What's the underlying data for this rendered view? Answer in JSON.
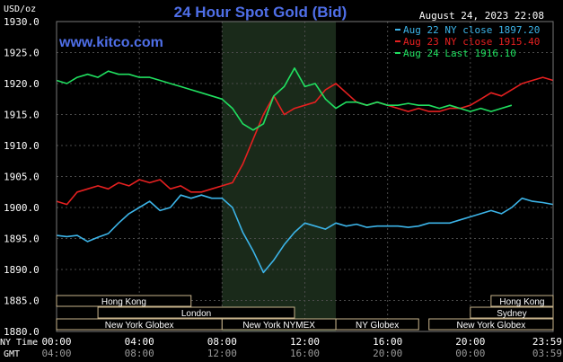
{
  "header": {
    "title": "24 Hour Spot Gold (Bid)",
    "website": "www.kitco.com",
    "timestamp": "August 24, 2023 22:08",
    "unit": "USD/oz"
  },
  "colors": {
    "background": "#000000",
    "title": "#4f6fe8",
    "website": "#4f6fe8",
    "aug22": "#3cb4e8",
    "aug23": "#e62020",
    "aug24": "#20e060",
    "text": "#ffffff",
    "grid": "#4a4a4a",
    "nymex_band": "#1a2a1a",
    "session_border": "#c8b48c"
  },
  "chart_data": {
    "type": "line",
    "ylim": [
      1880,
      1930
    ],
    "yticks": [
      "1930.0",
      "1925.0",
      "1920.0",
      "1915.0",
      "1910.0",
      "1905.0",
      "1900.0",
      "1895.0",
      "1890.0",
      "1885.0",
      "1880.0"
    ],
    "xlim": [
      0,
      24
    ],
    "ny_time_label": "NY Time",
    "gmt_label": "GMT",
    "ny_ticks": [
      "00:00",
      "04:00",
      "08:00",
      "12:00",
      "16:00",
      "20:00",
      "23:59"
    ],
    "gmt_ticks": [
      "04:00",
      "08:00",
      "12:00",
      "16:00",
      "20:00",
      "00:00",
      "03:59"
    ],
    "x_hours": [
      0,
      4,
      8,
      12,
      16,
      20,
      24
    ],
    "legend_position": "top-right",
    "series": [
      {
        "name": "Aug 22 NY close 1897.20",
        "color": "#3cb4e8",
        "x": [
          0,
          0.5,
          1,
          1.5,
          2,
          2.5,
          3,
          3.5,
          4,
          4.5,
          5,
          5.5,
          6,
          6.5,
          7,
          7.5,
          8,
          8.5,
          9,
          9.5,
          10,
          10.5,
          11,
          11.5,
          12,
          12.5,
          13,
          13.5,
          14,
          14.5,
          15,
          15.5,
          16,
          16.5,
          17,
          17.5,
          18,
          18.5,
          19,
          19.5,
          20,
          20.5,
          21,
          21.5,
          22,
          22.5,
          23,
          23.5,
          24
        ],
        "y": [
          1895.5,
          1895.3,
          1895.5,
          1894.5,
          1895.2,
          1895.8,
          1897.5,
          1899.0,
          1900.0,
          1901.0,
          1899.5,
          1900.0,
          1902.0,
          1901.5,
          1902.0,
          1901.5,
          1901.5,
          1900.0,
          1896.0,
          1893.0,
          1889.5,
          1891.5,
          1894.0,
          1896.0,
          1897.5,
          1897.0,
          1896.5,
          1897.5,
          1897.0,
          1897.3,
          1896.8,
          1897.0,
          1897.0,
          1897.0,
          1896.8,
          1897.0,
          1897.5,
          1897.5,
          1897.5,
          1898.0,
          1898.5,
          1899.0,
          1899.5,
          1899.0,
          1900.0,
          1901.5,
          1901.0,
          1900.8,
          1900.5
        ]
      },
      {
        "name": "Aug 23 NY close 1915.40",
        "color": "#e62020",
        "x": [
          0,
          0.5,
          1,
          1.5,
          2,
          2.5,
          3,
          3.5,
          4,
          4.5,
          5,
          5.5,
          6,
          6.5,
          7,
          7.5,
          8,
          8.5,
          9,
          9.5,
          10,
          10.5,
          11,
          11.5,
          12,
          12.5,
          13,
          13.5,
          14,
          14.5,
          15,
          15.5,
          16,
          16.5,
          17,
          17.5,
          18,
          18.5,
          19,
          19.5,
          20,
          20.5,
          21,
          21.5,
          22,
          22.5,
          23,
          23.5,
          24
        ],
        "y": [
          1901.0,
          1900.5,
          1902.5,
          1903.0,
          1903.5,
          1903.0,
          1904.0,
          1903.5,
          1904.5,
          1904.0,
          1904.5,
          1903.0,
          1903.5,
          1902.5,
          1902.5,
          1903.0,
          1903.5,
          1904.0,
          1907.0,
          1911.0,
          1915.0,
          1918.0,
          1915.0,
          1916.0,
          1916.5,
          1917.0,
          1919.0,
          1920.0,
          1918.5,
          1917.0,
          1916.5,
          1917.0,
          1916.5,
          1916.0,
          1915.5,
          1916.0,
          1915.5,
          1915.5,
          1916.0,
          1916.0,
          1916.5,
          1917.5,
          1918.5,
          1918.0,
          1919.0,
          1920.0,
          1920.5,
          1921.0,
          1920.5
        ]
      },
      {
        "name": "Aug 24 Last 1916.10",
        "color": "#20e060",
        "x": [
          0,
          0.5,
          1,
          1.5,
          2,
          2.5,
          3,
          3.5,
          4,
          4.5,
          5,
          5.5,
          6,
          6.5,
          7,
          7.5,
          8,
          8.5,
          9,
          9.5,
          10,
          10.5,
          11,
          11.5,
          12,
          12.5,
          13,
          13.5,
          14,
          14.5,
          15,
          15.5,
          16,
          16.5,
          17,
          17.5,
          18,
          18.5,
          19,
          19.5,
          20,
          20.5,
          21,
          21.5,
          22
        ],
        "y": [
          1920.5,
          1920.0,
          1921.0,
          1921.5,
          1921.0,
          1922.0,
          1921.5,
          1921.5,
          1921.0,
          1921.0,
          1920.5,
          1920.0,
          1919.5,
          1919.0,
          1918.5,
          1918.0,
          1917.5,
          1916.0,
          1913.5,
          1912.5,
          1913.5,
          1918.0,
          1919.5,
          1922.5,
          1919.5,
          1920.0,
          1917.5,
          1916.0,
          1917.0,
          1917.0,
          1916.5,
          1917.0,
          1916.5,
          1916.5,
          1916.8,
          1916.5,
          1916.5,
          1916.0,
          1916.5,
          1916.0,
          1915.5,
          1916.0,
          1915.5,
          1916.0,
          1916.5
        ]
      }
    ],
    "nymex_band_hours": [
      8,
      13.5
    ],
    "sessions": [
      {
        "label": "Hong Kong",
        "row": 0,
        "start": 0,
        "end": 6.5
      },
      {
        "label": "Hong Kong",
        "row": 0,
        "start": 21,
        "end": 24
      },
      {
        "label": "London",
        "row": 1,
        "start": 2,
        "end": 11.5
      },
      {
        "label": "Sydney",
        "row": 1,
        "start": 20,
        "end": 24
      },
      {
        "label": "New York Globex",
        "row": 2,
        "start": 0,
        "end": 8
      },
      {
        "label": "New York NYMEX",
        "row": 2,
        "start": 8,
        "end": 13.5
      },
      {
        "label": "NY Globex",
        "row": 2,
        "start": 13.5,
        "end": 17.5
      },
      {
        "label": "New York Globex",
        "row": 2,
        "start": 18,
        "end": 24
      }
    ]
  }
}
